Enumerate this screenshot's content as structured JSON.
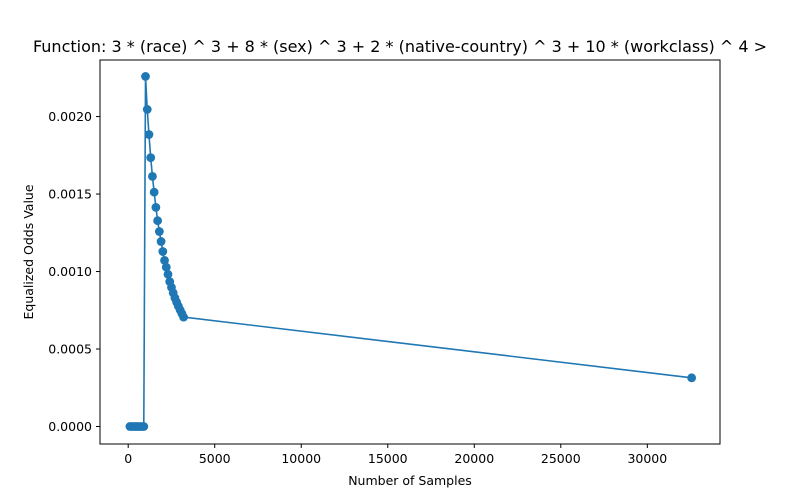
{
  "chart_data": {
    "type": "line",
    "title": "Function:  3 * (race) ^ 3 +  8 * (sex) ^ 3 +  2 * (native-country) ^ 3 +  10 * (workclass) ^ 4   >",
    "xlabel": "Number of Samples",
    "ylabel": "Equalized Odds Value",
    "xlim": [
      -1630,
      34200
    ],
    "ylim": [
      -0.000113,
      0.002365
    ],
    "xticks": [
      0,
      5000,
      10000,
      15000,
      20000,
      25000,
      30000
    ],
    "yticks": [
      0.0,
      0.0005,
      0.001,
      0.0015,
      0.002
    ],
    "xtick_labels": [
      "0",
      "5000",
      "10000",
      "15000",
      "20000",
      "25000",
      "30000"
    ],
    "ytick_labels": [
      "0.0000",
      "0.0005",
      "0.0010",
      "0.0015",
      "0.0020"
    ],
    "grid": false,
    "markers": true,
    "series": [
      {
        "color": "#1f77b4",
        "x": [
          100,
          200,
          300,
          400,
          500,
          600,
          700,
          800,
          900,
          1000,
          1100,
          1200,
          1300,
          1400,
          1500,
          1600,
          1700,
          1800,
          1900,
          2000,
          2100,
          2200,
          2300,
          2400,
          2500,
          2600,
          2700,
          2800,
          2900,
          3000,
          3100,
          3200,
          32561
        ],
        "y": [
          0.0,
          0.0,
          0.0,
          0.0,
          0.0,
          0.0,
          0.0,
          0.0,
          0.0,
          0.002259,
          0.002046,
          0.001884,
          0.001735,
          0.001614,
          0.001512,
          0.001414,
          0.001328,
          0.001258,
          0.001194,
          0.001129,
          0.001072,
          0.001028,
          0.000982,
          0.000935,
          0.000898,
          0.000862,
          0.000829,
          0.000802,
          0.000776,
          0.000752,
          0.000729,
          0.000706,
          0.000314
        ]
      }
    ]
  }
}
